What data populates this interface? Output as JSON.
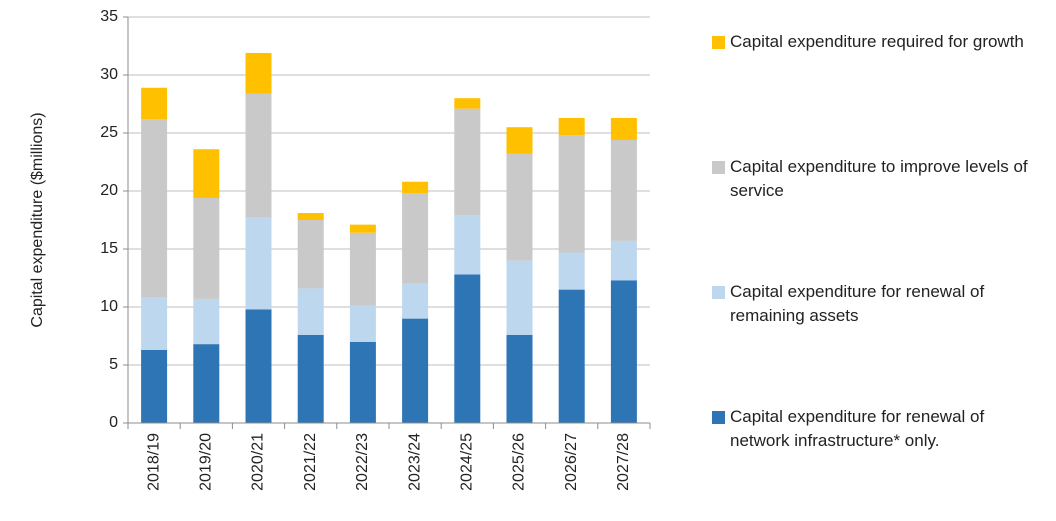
{
  "chart_data": {
    "type": "bar",
    "stacked": true,
    "y_label": "Capital expenditure ($millions)",
    "categories": [
      "2018/19",
      "2019/20",
      "2020/21",
      "2021/22",
      "2022/23",
      "2023/24",
      "2024/25",
      "2025/26",
      "2026/27",
      "2027/28"
    ],
    "series": [
      {
        "name": "Capital expenditure for renewal of network infrastructure* only.",
        "color": "#2e75b6",
        "values": [
          6.3,
          6.8,
          9.8,
          7.6,
          7.0,
          9.0,
          12.8,
          7.6,
          11.5,
          12.3
        ]
      },
      {
        "name": "Capital expenditure for renewal of remaining assets",
        "color": "#bdd7ee",
        "values": [
          4.5,
          3.9,
          7.9,
          4.0,
          3.1,
          3.0,
          5.1,
          6.4,
          3.2,
          3.4
        ]
      },
      {
        "name": "Capital expenditure to improve levels of service",
        "color": "#c9c9c9",
        "values": [
          15.4,
          8.7,
          10.7,
          5.9,
          6.3,
          7.8,
          9.2,
          9.2,
          10.1,
          8.7
        ]
      },
      {
        "name": "Capital expenditure required for growth",
        "color": "#ffc000",
        "values": [
          2.7,
          4.2,
          3.5,
          0.6,
          0.7,
          1.0,
          0.9,
          2.3,
          1.5,
          1.9
        ]
      }
    ],
    "ylim": [
      0,
      35
    ],
    "yticks": [
      0,
      5,
      10,
      15,
      20,
      25,
      30,
      35
    ],
    "grid": true,
    "legend": "right"
  }
}
